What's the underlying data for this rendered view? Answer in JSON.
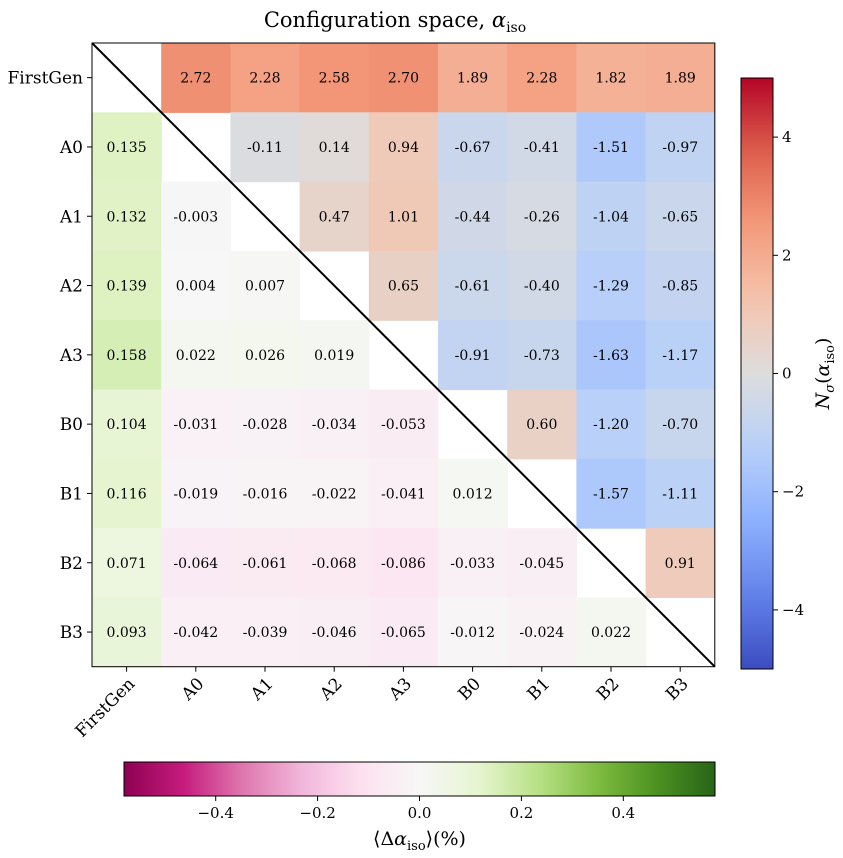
{
  "chart_data": {
    "type": "heatmap",
    "title_text": "Configuration space, ",
    "title_symbol": "α",
    "title_subscript": "iso",
    "row_labels": [
      "FirstGen",
      "A0",
      "A1",
      "A2",
      "A3",
      "B0",
      "B1",
      "B2",
      "B3"
    ],
    "col_labels": [
      "FirstGen",
      "A0",
      "A1",
      "A2",
      "A3",
      "B0",
      "B1",
      "B2",
      "B3"
    ],
    "upper_triangle": {
      "quantity": "N_sigma(alpha_iso)",
      "rows": [
        [
          null,
          "2.72",
          "2.28",
          "2.58",
          "2.70",
          "1.89",
          "2.28",
          "1.82",
          "1.89"
        ],
        [
          null,
          null,
          "-0.11",
          "0.14",
          "0.94",
          "-0.67",
          "-0.41",
          "-1.51",
          "-0.97"
        ],
        [
          null,
          null,
          null,
          "0.47",
          "1.01",
          "-0.44",
          "-0.26",
          "-1.04",
          "-0.65"
        ],
        [
          null,
          null,
          null,
          null,
          "0.65",
          "-0.61",
          "-0.40",
          "-1.29",
          "-0.85"
        ],
        [
          null,
          null,
          null,
          null,
          null,
          "-0.91",
          "-0.73",
          "-1.63",
          "-1.17"
        ],
        [
          null,
          null,
          null,
          null,
          null,
          null,
          "0.60",
          "-1.20",
          "-0.70"
        ],
        [
          null,
          null,
          null,
          null,
          null,
          null,
          null,
          "-1.57",
          "-1.11"
        ],
        [
          null,
          null,
          null,
          null,
          null,
          null,
          null,
          null,
          "0.91"
        ],
        [
          null,
          null,
          null,
          null,
          null,
          null,
          null,
          null,
          null
        ]
      ]
    },
    "lower_triangle": {
      "quantity": "<Delta alpha_iso> (%)",
      "rows": [
        [
          null,
          null,
          null,
          null,
          null,
          null,
          null,
          null,
          null
        ],
        [
          "0.135",
          null,
          null,
          null,
          null,
          null,
          null,
          null,
          null
        ],
        [
          "0.132",
          "-0.003",
          null,
          null,
          null,
          null,
          null,
          null,
          null
        ],
        [
          "0.139",
          "0.004",
          "0.007",
          null,
          null,
          null,
          null,
          null,
          null
        ],
        [
          "0.158",
          "0.022",
          "0.026",
          "0.019",
          null,
          null,
          null,
          null,
          null
        ],
        [
          "0.104",
          "-0.031",
          "-0.028",
          "-0.034",
          "-0.053",
          null,
          null,
          null,
          null
        ],
        [
          "0.116",
          "-0.019",
          "-0.016",
          "-0.022",
          "-0.041",
          "0.012",
          null,
          null,
          null
        ],
        [
          "0.071",
          "-0.064",
          "-0.061",
          "-0.068",
          "-0.086",
          "-0.033",
          "-0.045",
          null,
          null
        ],
        [
          "0.093",
          "-0.042",
          "-0.039",
          "-0.046",
          "-0.065",
          "-0.012",
          "-0.024",
          "0.022",
          null
        ]
      ]
    },
    "colorbar_right": {
      "label_base": "N",
      "label_sub": "σ",
      "label_arg": "α",
      "label_arg_sub": "iso",
      "range": [
        -5,
        5
      ],
      "ticks": [
        -4,
        -2,
        0,
        2,
        4
      ],
      "tick_labels": [
        "−4",
        "−2",
        "0",
        "2",
        "4"
      ],
      "colormap": "coolwarm"
    },
    "colorbar_bottom": {
      "label_lead": "⟨Δ",
      "label_symbol": "α",
      "label_sub": "iso",
      "label_trail": "⟩(%)",
      "range": [
        -0.58,
        0.58
      ],
      "ticks": [
        -0.4,
        -0.2,
        0.0,
        0.2,
        0.4
      ],
      "tick_labels": [
        "−0.4",
        "−0.2",
        "0.0",
        "0.2",
        "0.4"
      ],
      "colormap": "PiYG"
    },
    "diagonal_line": true
  }
}
